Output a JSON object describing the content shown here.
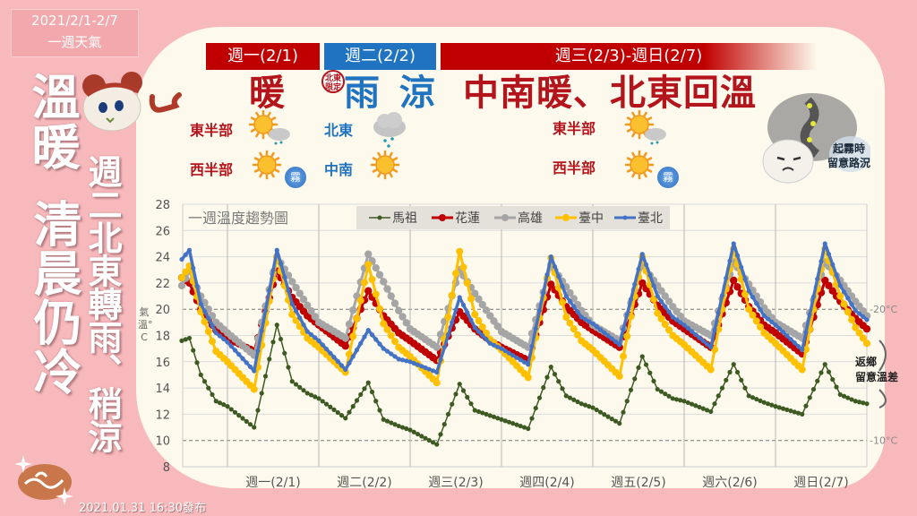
{
  "header": {
    "date_range": "2021/2/1-2/7",
    "subtitle": "一週天氣",
    "headline_left_1": "溫暖",
    "headline_left_2": "清晨仍冷",
    "headline_sub": "週二北東轉雨、稍涼",
    "published": "2021.01.31 16:30發布"
  },
  "days": [
    {
      "bar": "週一(2/1)",
      "headline": "暖",
      "bar_color": "#c00000",
      "regions": [
        {
          "label": "東半部",
          "icon": "sun-cloud-rain-icon"
        },
        {
          "label": "西半部",
          "icon": "sun-fog-icon",
          "badge": "霧"
        }
      ]
    },
    {
      "bar": "週二(2/2)",
      "headline": "雨 涼",
      "bar_color": "#1f73c0",
      "tag": "北東限定",
      "regions": [
        {
          "label": "北東",
          "icon": "cloud-rain-icon"
        },
        {
          "label": "中南",
          "icon": "sun-icon"
        }
      ]
    },
    {
      "bar": "週三(2/3)-週日(2/7)",
      "headline": "中南暖、北東回溫",
      "bar_color": "#c00000",
      "regions": [
        {
          "label": "東半部",
          "icon": "sun-cloud-rain-icon"
        },
        {
          "label": "西半部",
          "icon": "sun-fog-icon",
          "badge": "霧"
        }
      ]
    }
  ],
  "fog_note": {
    "line1": "起霧時",
    "line2": "留意路況"
  },
  "annotation": {
    "line1": "返鄉",
    "line2": "留意溫差"
  },
  "chart_data": {
    "type": "line",
    "title": "一週溫度趨勢圖",
    "ylabel": "氣溫°C",
    "ylim": [
      8,
      28
    ],
    "yticks": [
      8,
      10,
      12,
      14,
      16,
      18,
      20,
      22,
      24,
      26,
      28
    ],
    "categories": [
      "週一(2/1)",
      "週二(2/2)",
      "週三(2/3)",
      "週四(2/4)",
      "週五(2/5)",
      "週六(2/6)",
      "週日(2/7)"
    ],
    "reference_lines": [
      {
        "value": 20,
        "label": "20°C"
      },
      {
        "value": 10,
        "label": "10°C"
      }
    ],
    "grid": true,
    "legend_position": "top",
    "x": [
      "01/31 12:00",
      "01/31 14:00",
      "01/31 17:00",
      "01/31 21:00",
      "02/01 00:00",
      "02/01 07:00",
      "02/01 13:00",
      "02/01 17:00",
      "02/01 21:00",
      "02/02 00:00",
      "02/02 07:00",
      "02/02 13:00",
      "02/02 17:00",
      "02/02 21:00",
      "02/03 00:00",
      "02/03 07:00",
      "02/03 13:00",
      "02/03 17:00",
      "02/03 21:00",
      "02/04 00:00",
      "02/04 07:00",
      "02/04 13:00",
      "02/04 17:00",
      "02/04 21:00",
      "02/05 00:00",
      "02/05 07:00",
      "02/05 13:00",
      "02/05 17:00",
      "02/05 21:00",
      "02/06 00:00",
      "02/06 07:00",
      "02/06 13:00",
      "02/06 17:00",
      "02/06 21:00",
      "02/07 00:00",
      "02/07 07:00",
      "02/07 13:00",
      "02/07 17:00",
      "02/07 21:00",
      "02/08 00:00"
    ],
    "series": [
      {
        "name": "馬祖",
        "color": "#3d5a23",
        "values": [
          17.6,
          17.8,
          15.0,
          13.0,
          12.6,
          11.0,
          18.8,
          14.5,
          13.6,
          13.2,
          11.7,
          14.4,
          11.6,
          11.1,
          10.8,
          9.7,
          14.3,
          12.3,
          11.9,
          11.6,
          10.9,
          15.6,
          13.4,
          12.8,
          12.5,
          11.3,
          16.4,
          13.9,
          13.2,
          13.0,
          12.2,
          15.8,
          13.4,
          12.9,
          12.6,
          12.0,
          15.8,
          13.5,
          13.0,
          12.8
        ]
      },
      {
        "name": "花蓮",
        "color": "#c00000",
        "values": [
          22.4,
          22.0,
          20.0,
          18.4,
          17.8,
          16.8,
          22.9,
          20.9,
          19.5,
          18.8,
          17.2,
          21.4,
          19.5,
          18.2,
          17.6,
          16.1,
          19.8,
          18.5,
          17.6,
          17.1,
          16.1,
          21.9,
          20.2,
          19.0,
          18.4,
          17.1,
          22.0,
          20.3,
          19.1,
          18.5,
          17.1,
          22.2,
          20.2,
          18.8,
          18.2,
          16.6,
          22.2,
          20.6,
          19.3,
          18.5
        ]
      },
      {
        "name": "高雄",
        "color": "#a5a5a5",
        "values": [
          21.8,
          22.9,
          21.0,
          19.0,
          18.2,
          16.5,
          24.0,
          22.1,
          20.3,
          19.0,
          17.8,
          24.2,
          22.1,
          19.9,
          18.5,
          17.1,
          23.0,
          21.2,
          19.5,
          18.3,
          17.1,
          23.4,
          21.7,
          19.9,
          18.8,
          17.6,
          23.4,
          21.8,
          20.2,
          19.1,
          18.0,
          23.6,
          21.9,
          20.1,
          19.0,
          17.8,
          23.6,
          22.2,
          20.6,
          19.5
        ]
      },
      {
        "name": "臺中",
        "color": "#ffc000",
        "values": [
          22.4,
          23.3,
          19.8,
          16.8,
          16.0,
          13.9,
          24.0,
          19.6,
          17.8,
          17.1,
          15.2,
          23.4,
          18.9,
          17.1,
          16.4,
          14.4,
          24.4,
          19.6,
          17.7,
          16.9,
          14.8,
          23.9,
          19.4,
          17.6,
          16.9,
          14.9,
          24.0,
          19.7,
          18.0,
          17.3,
          15.4,
          24.6,
          20.0,
          18.2,
          17.4,
          15.4,
          24.6,
          21.0,
          18.6,
          17.4
        ]
      },
      {
        "name": "臺北",
        "color": "#4472c4",
        "values": [
          23.8,
          24.5,
          20.4,
          18.2,
          17.5,
          15.3,
          24.5,
          20.4,
          18.3,
          17.6,
          15.4,
          18.4,
          17.0,
          16.2,
          16.0,
          15.2,
          20.9,
          18.6,
          17.4,
          17.0,
          15.8,
          24.0,
          21.0,
          19.4,
          18.9,
          17.3,
          24.2,
          21.0,
          19.4,
          18.8,
          17.1,
          25.0,
          21.4,
          19.5,
          18.8,
          16.9,
          25.0,
          21.8,
          19.9,
          19.2
        ]
      }
    ]
  }
}
